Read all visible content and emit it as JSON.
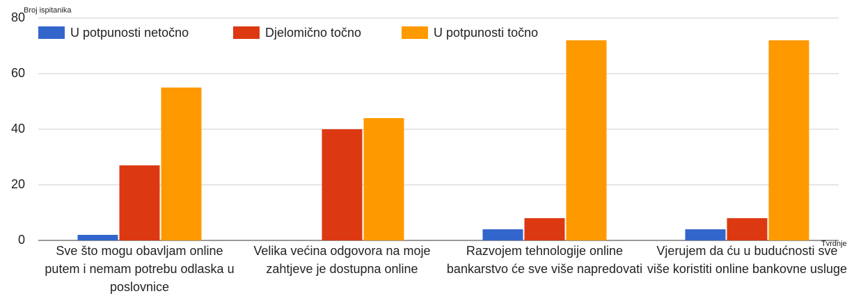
{
  "chart_data": {
    "type": "bar",
    "y_label": "Broj ispitanika",
    "x_label": "Tvrdnje",
    "categories": [
      "Sve što mogu obavljam online putem i nemam potrebu odlaska u poslovnice",
      "Velika većina odgovora na moje zahtjeve je dostupna online",
      "Razvojem tehnologije online bankarstvo će sve više napredovati",
      "Vjerujem da ću u budućnosti sve više koristiti online bankovne usluge"
    ],
    "series": [
      {
        "name": "U potpunosti netočno",
        "color": "#3366cc",
        "values": [
          2,
          0,
          4,
          4
        ]
      },
      {
        "name": "Djelomično točno",
        "color": "#dc3912",
        "values": [
          27,
          40,
          8,
          8
        ]
      },
      {
        "name": "U potpunosti točno",
        "color": "#ff9900",
        "values": [
          55,
          44,
          72,
          72
        ]
      }
    ],
    "ylim": [
      0,
      80
    ],
    "yticks": [
      0,
      20,
      40,
      60,
      80
    ],
    "grid": true,
    "legend": "top"
  }
}
